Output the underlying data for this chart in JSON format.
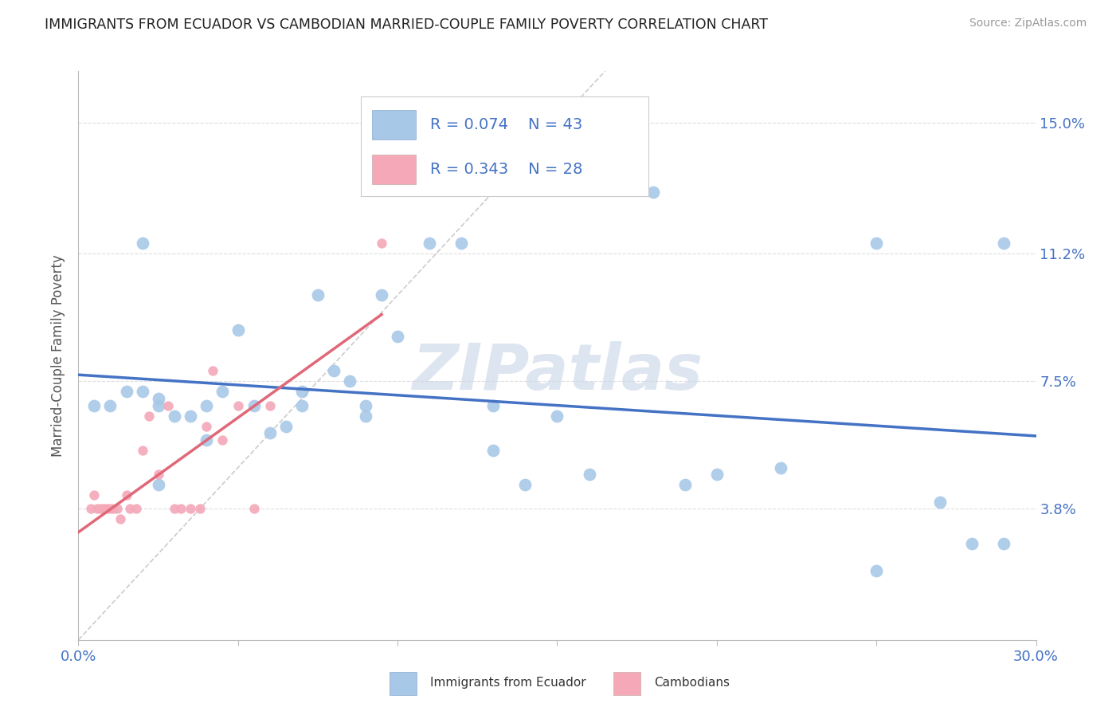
{
  "title": "IMMIGRANTS FROM ECUADOR VS CAMBODIAN MARRIED-COUPLE FAMILY POVERTY CORRELATION CHART",
  "source": "Source: ZipAtlas.com",
  "ylabel": "Married-Couple Family Poverty",
  "xlim": [
    0.0,
    0.3
  ],
  "ylim": [
    0.0,
    0.165
  ],
  "ytick_positions": [
    0.038,
    0.075,
    0.112,
    0.15
  ],
  "ytick_labels": [
    "3.8%",
    "7.5%",
    "11.2%",
    "15.0%"
  ],
  "legend_r_blue": "0.074",
  "legend_n_blue": "43",
  "legend_r_pink": "0.343",
  "legend_n_pink": "28",
  "blue_scatter_color": "#a8c8e8",
  "pink_scatter_color": "#f4a8b8",
  "blue_line_color": "#4472c4",
  "pink_line_color": "#e06878",
  "text_blue_color": "#4472c4",
  "watermark_color": "#ccd8e8",
  "blue_scatter_x": [
    0.005,
    0.01,
    0.015,
    0.02,
    0.02,
    0.025,
    0.025,
    0.025,
    0.03,
    0.035,
    0.04,
    0.04,
    0.045,
    0.05,
    0.055,
    0.06,
    0.065,
    0.07,
    0.07,
    0.075,
    0.08,
    0.085,
    0.09,
    0.09,
    0.095,
    0.1,
    0.11,
    0.12,
    0.13,
    0.14,
    0.15,
    0.16,
    0.18,
    0.19,
    0.2,
    0.22,
    0.25,
    0.27,
    0.28,
    0.29,
    0.13,
    0.25,
    0.29
  ],
  "blue_scatter_y": [
    0.068,
    0.068,
    0.072,
    0.115,
    0.072,
    0.07,
    0.068,
    0.045,
    0.065,
    0.065,
    0.058,
    0.068,
    0.072,
    0.09,
    0.068,
    0.06,
    0.062,
    0.072,
    0.068,
    0.1,
    0.078,
    0.075,
    0.068,
    0.065,
    0.1,
    0.088,
    0.115,
    0.115,
    0.068,
    0.045,
    0.065,
    0.048,
    0.13,
    0.045,
    0.048,
    0.05,
    0.115,
    0.04,
    0.028,
    0.115,
    0.055,
    0.02,
    0.028
  ],
  "pink_scatter_x": [
    0.004,
    0.005,
    0.006,
    0.007,
    0.008,
    0.009,
    0.01,
    0.011,
    0.012,
    0.013,
    0.015,
    0.016,
    0.018,
    0.02,
    0.022,
    0.025,
    0.028,
    0.03,
    0.032,
    0.035,
    0.038,
    0.04,
    0.042,
    0.045,
    0.05,
    0.055,
    0.06,
    0.095
  ],
  "pink_scatter_y": [
    0.038,
    0.042,
    0.038,
    0.038,
    0.038,
    0.038,
    0.038,
    0.038,
    0.038,
    0.035,
    0.042,
    0.038,
    0.038,
    0.055,
    0.065,
    0.048,
    0.068,
    0.038,
    0.038,
    0.038,
    0.038,
    0.062,
    0.078,
    0.058,
    0.068,
    0.038,
    0.068,
    0.115
  ]
}
